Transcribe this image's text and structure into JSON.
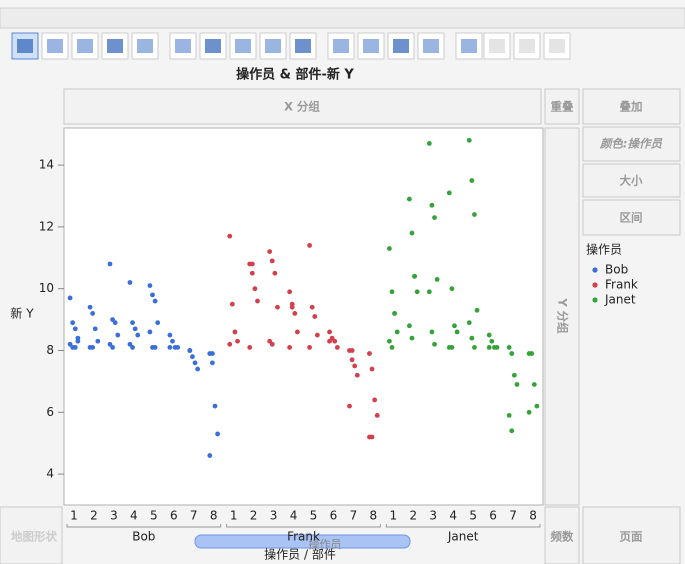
{
  "chart_data": {
    "type": "scatter",
    "title": "操作员 & 部件-新 Y",
    "ylabel": "新 Y",
    "xlabel": "操作员 / 部件",
    "legend_title": "操作员",
    "categories": [
      "1",
      "2",
      "3",
      "4",
      "5",
      "6",
      "7",
      "8"
    ],
    "series": [
      {
        "name": "Bob",
        "color": "#3a6fd8",
        "values": [
          [
            9.7,
            8.9,
            8.7,
            8.4,
            8.2,
            8.1,
            8.1,
            8.3
          ],
          [
            9.4,
            9.2,
            8.7,
            8.3,
            8.1,
            8.1
          ],
          [
            10.8,
            9.0,
            8.9,
            8.5,
            8.2,
            8.1
          ],
          [
            10.2,
            8.9,
            8.7,
            8.5,
            8.2,
            8.1
          ],
          [
            10.1,
            9.8,
            9.6,
            8.9,
            8.6,
            8.1,
            8.1
          ],
          [
            8.5,
            8.3,
            8.1,
            8.1,
            8.1
          ],
          [
            8.0,
            7.8,
            7.6,
            7.4,
            8.0
          ],
          [
            7.9,
            7.6,
            6.2,
            5.3,
            4.6,
            7.9
          ]
        ]
      },
      {
        "name": "Frank",
        "color": "#d33f4a",
        "values": [
          [
            11.7,
            9.5,
            8.6,
            8.3,
            8.2
          ],
          [
            10.8,
            10.5,
            10.0,
            9.6,
            8.1,
            10.8
          ],
          [
            11.2,
            10.9,
            10.5,
            9.4,
            8.3,
            8.2
          ],
          [
            9.9,
            9.5,
            9.2,
            8.6,
            8.1,
            9.4
          ],
          [
            11.4,
            9.4,
            9.1,
            8.5,
            8.1
          ],
          [
            8.6,
            8.4,
            8.3,
            8.1,
            8.3
          ],
          [
            8.0,
            7.7,
            7.5,
            7.2,
            6.2,
            8.0
          ],
          [
            7.9,
            7.4,
            6.4,
            5.9,
            5.2,
            5.2
          ]
        ]
      },
      {
        "name": "Janet",
        "color": "#35a33a",
        "values": [
          [
            11.3,
            9.9,
            9.2,
            8.6,
            8.3,
            8.1,
            9.2
          ],
          [
            12.9,
            11.8,
            10.4,
            9.9,
            8.8,
            8.4,
            10.4
          ],
          [
            14.7,
            12.7,
            12.3,
            10.3,
            9.9,
            8.6,
            8.2
          ],
          [
            13.1,
            10.0,
            8.8,
            8.6,
            8.1,
            8.1
          ],
          [
            14.8,
            13.5,
            12.4,
            9.3,
            8.9,
            8.4,
            8.1
          ],
          [
            8.5,
            8.3,
            8.1,
            8.1,
            8.1
          ],
          [
            8.1,
            7.9,
            7.2,
            6.9,
            5.9,
            5.4
          ],
          [
            7.9,
            7.9,
            6.9,
            6.2,
            6.0
          ]
        ]
      }
    ],
    "ylim": [
      3,
      15.2
    ],
    "yticks": [
      4,
      6,
      8,
      10,
      12,
      14
    ],
    "grid": false
  },
  "drop_zones": {
    "x_group": "X 分组",
    "overlap": "重叠",
    "overlay": "叠加",
    "color": "颜色:操作员",
    "size": "大小",
    "interval": "区间",
    "y_group": "Y 分组",
    "map_shape": "地图形状",
    "frequency": "频数",
    "page": "页面",
    "drag_label": "操作员"
  }
}
